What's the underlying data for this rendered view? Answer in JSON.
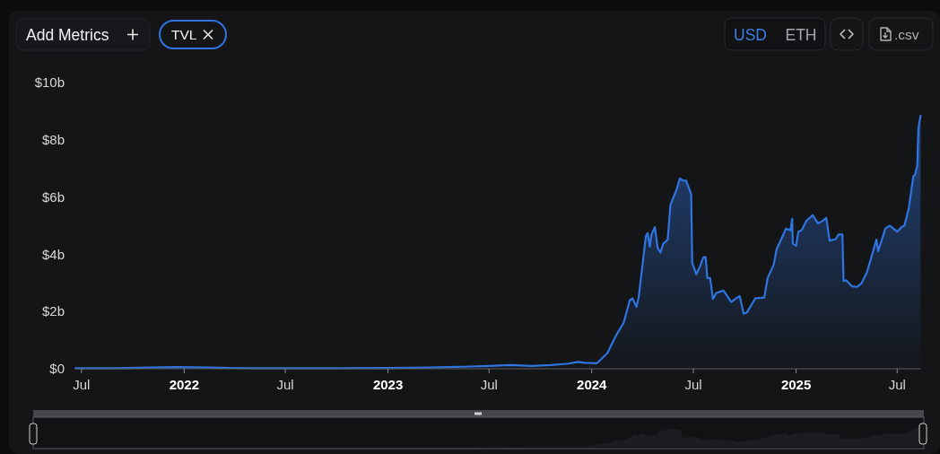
{
  "chart_data": {
    "type": "area",
    "xlim": [
      "2021-06-20",
      "2025-08-13"
    ],
    "xticks": [
      {
        "value": "2021-07-01",
        "label": "Jul"
      },
      {
        "value": "2022-01-01",
        "label": "2022"
      },
      {
        "value": "2022-07-01",
        "label": "Jul"
      },
      {
        "value": "2023-01-01",
        "label": "2023"
      },
      {
        "value": "2023-07-01",
        "label": "Jul"
      },
      {
        "value": "2024-01-01",
        "label": "2024"
      },
      {
        "value": "2024-07-01",
        "label": "Jul"
      },
      {
        "value": "2025-01-01",
        "label": "2025"
      },
      {
        "value": "2025-07-01",
        "label": "Jul"
      }
    ],
    "ylim": [
      0,
      10
    ],
    "yticks": [
      {
        "value": 0,
        "label": "$0"
      },
      {
        "value": 2,
        "label": "$2b"
      },
      {
        "value": 4,
        "label": "$4b"
      },
      {
        "value": 6,
        "label": "$6b"
      },
      {
        "value": 8,
        "label": "$8b"
      },
      {
        "value": 10,
        "label": "$10b"
      }
    ],
    "legend": "top left",
    "annotations": [
      "Add Metrics",
      "USD",
      "ETH",
      ".csv"
    ],
    "series": [
      {
        "name": "TVL",
        "color": "#2f74e0",
        "x": [
          "2021-06-20",
          "2021-09-01",
          "2021-11-01",
          "2021-12-20",
          "2022-02-15",
          "2022-05-01",
          "2022-07-01",
          "2022-10-01",
          "2023-01-01",
          "2023-03-15",
          "2023-05-15",
          "2023-07-01",
          "2023-08-10",
          "2023-09-15",
          "2023-10-20",
          "2023-11-20",
          "2023-12-07",
          "2023-12-20",
          "2024-01-10",
          "2024-01-29",
          "2024-02-14",
          "2024-02-27",
          "2024-03-09",
          "2024-03-14",
          "2024-03-21",
          "2024-03-25",
          "2024-04-07",
          "2024-04-10",
          "2024-04-14",
          "2024-04-17",
          "2024-04-23",
          "2024-04-28",
          "2024-05-03",
          "2024-05-08",
          "2024-05-16",
          "2024-05-21",
          "2024-05-31",
          "2024-06-07",
          "2024-06-13",
          "2024-06-18",
          "2024-06-23",
          "2024-06-27",
          "2024-06-29",
          "2024-07-06",
          "2024-07-12",
          "2024-07-19",
          "2024-07-23",
          "2024-07-26",
          "2024-07-31",
          "2024-08-05",
          "2024-08-11",
          "2024-08-24",
          "2024-09-07",
          "2024-09-14",
          "2024-09-22",
          "2024-09-29",
          "2024-10-05",
          "2024-10-20",
          "2024-11-05",
          "2024-11-11",
          "2024-11-22",
          "2024-11-27",
          "2024-12-14",
          "2024-12-22",
          "2024-12-25",
          "2024-12-26",
          "2025-01-01",
          "2025-01-05",
          "2025-01-11",
          "2025-01-19",
          "2025-01-31",
          "2025-02-09",
          "2025-02-17",
          "2025-02-24",
          "2025-03-02",
          "2025-03-13",
          "2025-03-18",
          "2025-03-25",
          "2025-03-27",
          "2025-04-01",
          "2025-04-11",
          "2025-04-20",
          "2025-04-28",
          "2025-05-08",
          "2025-05-25",
          "2025-05-28",
          "2025-06-10",
          "2025-06-18",
          "2025-07-01",
          "2025-07-09",
          "2025-07-14",
          "2025-07-22",
          "2025-07-30",
          "2025-08-02",
          "2025-08-06",
          "2025-08-08",
          "2025-08-12"
        ],
        "values": [
          0.02,
          0.02,
          0.04,
          0.06,
          0.04,
          0.02,
          0.02,
          0.02,
          0.03,
          0.04,
          0.07,
          0.1,
          0.13,
          0.1,
          0.13,
          0.18,
          0.24,
          0.21,
          0.19,
          0.55,
          1.18,
          1.6,
          2.39,
          2.46,
          2.16,
          2.49,
          4.64,
          4.74,
          4.27,
          4.69,
          4.95,
          4.22,
          4.06,
          4.37,
          4.51,
          5.74,
          6.21,
          6.65,
          6.57,
          6.57,
          6.31,
          6.1,
          3.7,
          3.3,
          3.54,
          3.9,
          3.9,
          3.17,
          3.17,
          2.44,
          2.65,
          2.73,
          2.33,
          2.44,
          2.54,
          1.92,
          1.97,
          2.46,
          2.49,
          3.17,
          3.64,
          4.17,
          4.9,
          4.84,
          5.24,
          4.37,
          4.3,
          4.79,
          4.84,
          5.16,
          5.37,
          5.08,
          5.16,
          5.27,
          4.48,
          4.53,
          4.69,
          4.69,
          3.07,
          3.09,
          2.88,
          2.86,
          2.98,
          3.38,
          4.51,
          4.11,
          4.9,
          5.0,
          4.79,
          4.95,
          5.0,
          5.63,
          6.73,
          6.78,
          7.1,
          8.4,
          8.84
        ]
      }
    ]
  }
}
